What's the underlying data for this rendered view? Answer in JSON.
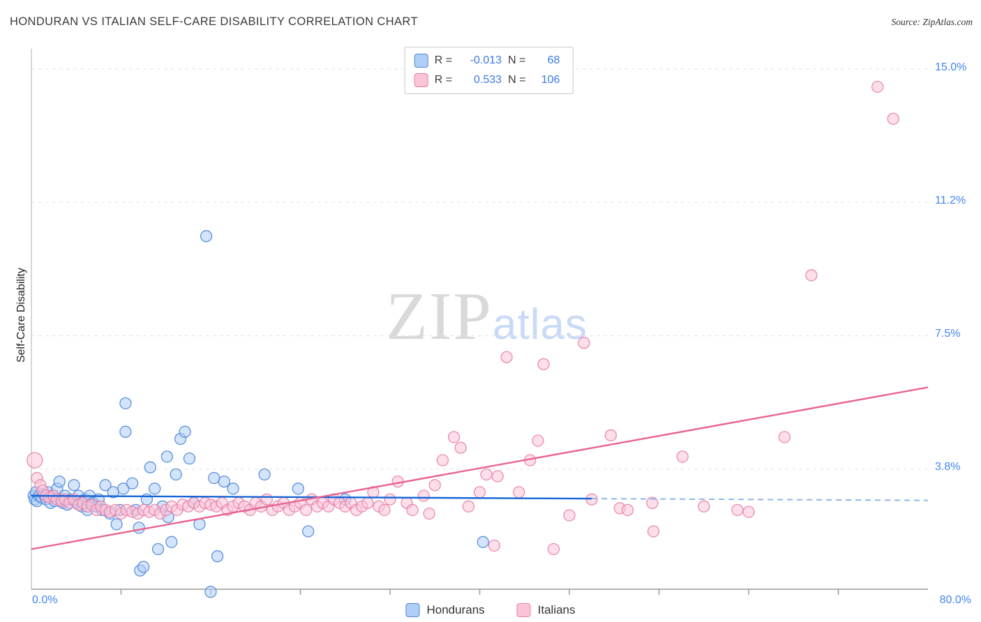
{
  "header": {
    "title": "HONDURAN VS ITALIAN SELF-CARE DISABILITY CORRELATION CHART",
    "source": "Source: ZipAtlas.com"
  },
  "axes": {
    "y_label": "Self-Care Disability",
    "x_min_label": "0.0%",
    "x_max_label": "80.0%",
    "y_tick_labels": [
      "15.0%",
      "11.2%",
      "7.5%",
      "3.8%"
    ]
  },
  "legend_box": {
    "rows": [
      {
        "r_label": "R =",
        "r_value": "-0.013",
        "n_label": "N =",
        "n_value": "68"
      },
      {
        "r_label": "R =",
        "r_value": "0.533",
        "n_label": "N =",
        "n_value": "106"
      }
    ]
  },
  "bottom_legend": {
    "items": [
      {
        "label": "Hondurans"
      },
      {
        "label": "Italians"
      }
    ]
  },
  "watermark": {
    "part1": "ZIP",
    "part2": "atlas"
  },
  "chart_data": {
    "type": "scatter",
    "title": "HONDURAN VS ITALIAN SELF-CARE DISABILITY CORRELATION CHART",
    "xlabel": "",
    "ylabel": "Self-Care Disability",
    "xlim": [
      0,
      80
    ],
    "ylim": [
      0,
      15.6
    ],
    "x_unit": "%",
    "y_unit": "%",
    "grid": true,
    "gridlines_y": [
      3.75,
      7.5,
      11.25,
      15.0
    ],
    "gridline_labels": [
      "3.8%",
      "7.5%",
      "11.2%",
      "15.0%"
    ],
    "x_ticks": [
      8,
      16,
      24,
      32,
      40,
      48,
      56,
      64,
      72
    ],
    "colors": {
      "grid": "#e2e2e2",
      "axis": "#9a9a9a",
      "tick_label_blue": "#4285f4"
    },
    "series": [
      {
        "name": "Hondurans",
        "R": -0.013,
        "N": 68,
        "fill": "#AFCEF8",
        "stroke": "#4E86D8",
        "points": [
          [
            0.2,
            3.0
          ],
          [
            0.3,
            2.9
          ],
          [
            0.4,
            3.1
          ],
          [
            0.5,
            2.85
          ],
          [
            0.7,
            3.0
          ],
          [
            0.9,
            2.95
          ],
          [
            1.1,
            3.05
          ],
          [
            1.3,
            2.9
          ],
          [
            1.5,
            3.1
          ],
          [
            1.7,
            2.8
          ],
          [
            1.9,
            3.0
          ],
          [
            2.1,
            2.85
          ],
          [
            2.3,
            3.2
          ],
          [
            2.5,
            3.4
          ],
          [
            2.6,
            2.9
          ],
          [
            2.8,
            2.8
          ],
          [
            3.0,
            3.0
          ],
          [
            3.2,
            2.75
          ],
          [
            3.5,
            2.9
          ],
          [
            3.8,
            3.3
          ],
          [
            4.0,
            2.8
          ],
          [
            4.2,
            3.0
          ],
          [
            4.5,
            2.7
          ],
          [
            4.8,
            2.9
          ],
          [
            5.0,
            2.6
          ],
          [
            5.2,
            3.0
          ],
          [
            5.5,
            2.8
          ],
          [
            5.8,
            2.7
          ],
          [
            6.0,
            2.9
          ],
          [
            6.3,
            2.6
          ],
          [
            6.6,
            3.3
          ],
          [
            7.0,
            2.5
          ],
          [
            7.3,
            3.1
          ],
          [
            7.6,
            2.2
          ],
          [
            7.9,
            2.6
          ],
          [
            8.2,
            3.2
          ],
          [
            8.4,
            5.6
          ],
          [
            8.4,
            4.8
          ],
          [
            9.0,
            3.35
          ],
          [
            9.3,
            2.6
          ],
          [
            9.6,
            2.1
          ],
          [
            9.7,
            0.9
          ],
          [
            10.0,
            1.0
          ],
          [
            10.3,
            2.9
          ],
          [
            10.6,
            3.8
          ],
          [
            11.0,
            3.2
          ],
          [
            11.3,
            1.5
          ],
          [
            11.7,
            2.7
          ],
          [
            12.1,
            4.1
          ],
          [
            12.2,
            2.4
          ],
          [
            12.5,
            1.7
          ],
          [
            12.9,
            3.6
          ],
          [
            13.3,
            4.6
          ],
          [
            13.7,
            4.8
          ],
          [
            14.1,
            4.05
          ],
          [
            14.5,
            2.8
          ],
          [
            15.0,
            2.2
          ],
          [
            15.6,
            10.3
          ],
          [
            16.0,
            0.3
          ],
          [
            16.3,
            3.5
          ],
          [
            16.6,
            1.3
          ],
          [
            17.2,
            3.4
          ],
          [
            18.0,
            3.2
          ],
          [
            20.8,
            3.6
          ],
          [
            23.8,
            3.2
          ],
          [
            24.7,
            2.0
          ],
          [
            28.0,
            2.9
          ],
          [
            40.3,
            1.7
          ]
        ]
      },
      {
        "name": "Italians",
        "R": 0.533,
        "N": 106,
        "fill": "#FAC4D8",
        "stroke": "#E880A6",
        "points": [
          [
            0.3,
            4.0,
            11
          ],
          [
            0.5,
            3.5
          ],
          [
            0.8,
            3.3
          ],
          [
            1.0,
            3.15
          ],
          [
            1.3,
            3.0
          ],
          [
            1.6,
            2.95
          ],
          [
            2.0,
            3.0
          ],
          [
            2.3,
            2.9
          ],
          [
            2.7,
            2.85
          ],
          [
            3.0,
            2.9
          ],
          [
            3.4,
            2.8
          ],
          [
            3.8,
            2.9
          ],
          [
            4.2,
            2.75
          ],
          [
            4.6,
            2.8
          ],
          [
            5.0,
            2.7
          ],
          [
            5.4,
            2.75
          ],
          [
            5.8,
            2.6
          ],
          [
            6.2,
            2.7
          ],
          [
            6.6,
            2.6
          ],
          [
            7.0,
            2.55
          ],
          [
            7.5,
            2.6
          ],
          [
            8.0,
            2.5
          ],
          [
            8.5,
            2.6
          ],
          [
            9.0,
            2.55
          ],
          [
            9.5,
            2.5
          ],
          [
            10.0,
            2.6
          ],
          [
            10.5,
            2.55
          ],
          [
            11.0,
            2.6
          ],
          [
            11.5,
            2.5
          ],
          [
            12.0,
            2.6
          ],
          [
            12.5,
            2.7
          ],
          [
            13.0,
            2.6
          ],
          [
            13.5,
            2.75
          ],
          [
            14.0,
            2.7
          ],
          [
            14.5,
            2.8
          ],
          [
            15.0,
            2.7
          ],
          [
            15.5,
            2.8
          ],
          [
            16.0,
            2.75
          ],
          [
            16.5,
            2.7
          ],
          [
            17.0,
            2.8
          ],
          [
            17.5,
            2.6
          ],
          [
            18.0,
            2.7
          ],
          [
            18.5,
            2.8
          ],
          [
            19.0,
            2.7
          ],
          [
            19.5,
            2.6
          ],
          [
            20.0,
            2.8
          ],
          [
            20.5,
            2.7
          ],
          [
            21.0,
            2.9
          ],
          [
            21.5,
            2.6
          ],
          [
            22.0,
            2.7
          ],
          [
            22.5,
            2.8
          ],
          [
            23.0,
            2.6
          ],
          [
            23.5,
            2.7
          ],
          [
            24.0,
            2.8
          ],
          [
            24.5,
            2.6
          ],
          [
            25.0,
            2.9
          ],
          [
            25.5,
            2.7
          ],
          [
            26.0,
            2.8
          ],
          [
            26.5,
            2.7
          ],
          [
            27.0,
            2.9
          ],
          [
            27.5,
            2.8
          ],
          [
            28.0,
            2.7
          ],
          [
            28.5,
            2.8
          ],
          [
            29.0,
            2.6
          ],
          [
            29.5,
            2.7
          ],
          [
            30.0,
            2.8
          ],
          [
            30.5,
            3.1
          ],
          [
            31.0,
            2.7
          ],
          [
            31.5,
            2.6
          ],
          [
            32.0,
            2.9
          ],
          [
            32.7,
            3.4
          ],
          [
            33.5,
            2.8
          ],
          [
            34.0,
            2.6
          ],
          [
            35.0,
            3.0
          ],
          [
            35.5,
            2.5
          ],
          [
            36.0,
            3.3
          ],
          [
            36.7,
            4.0
          ],
          [
            37.7,
            4.65
          ],
          [
            38.3,
            4.35
          ],
          [
            39.0,
            2.7
          ],
          [
            40.0,
            3.1
          ],
          [
            40.6,
            3.6
          ],
          [
            41.3,
            1.6
          ],
          [
            41.6,
            3.55
          ],
          [
            42.4,
            6.9
          ],
          [
            43.5,
            3.1
          ],
          [
            44.5,
            4.0
          ],
          [
            45.2,
            4.55
          ],
          [
            45.7,
            6.7
          ],
          [
            46.6,
            1.5
          ],
          [
            48.0,
            2.45
          ],
          [
            49.3,
            7.3
          ],
          [
            50.0,
            2.9
          ],
          [
            51.7,
            4.7
          ],
          [
            52.5,
            2.65
          ],
          [
            53.2,
            2.6
          ],
          [
            55.4,
            2.8
          ],
          [
            55.5,
            2.0
          ],
          [
            58.1,
            4.1
          ],
          [
            60.0,
            2.7
          ],
          [
            63.0,
            2.6
          ],
          [
            64.0,
            2.55
          ],
          [
            67.2,
            4.65
          ],
          [
            69.6,
            9.2
          ],
          [
            75.5,
            14.5
          ],
          [
            76.9,
            13.6
          ]
        ]
      }
    ],
    "trend_lines": [
      {
        "series": "Hondurans",
        "color": "#1565D8",
        "dash_color": "#8FB6E4",
        "solid": [
          [
            0,
            3.0
          ],
          [
            50,
            2.92
          ]
        ],
        "dashed": [
          [
            50,
            2.92
          ],
          [
            80,
            2.87
          ]
        ]
      },
      {
        "series": "Italians",
        "color": "#E8638F",
        "solid": [
          [
            0,
            1.5
          ],
          [
            80,
            6.05
          ]
        ]
      }
    ],
    "legend_position": "bottom"
  }
}
